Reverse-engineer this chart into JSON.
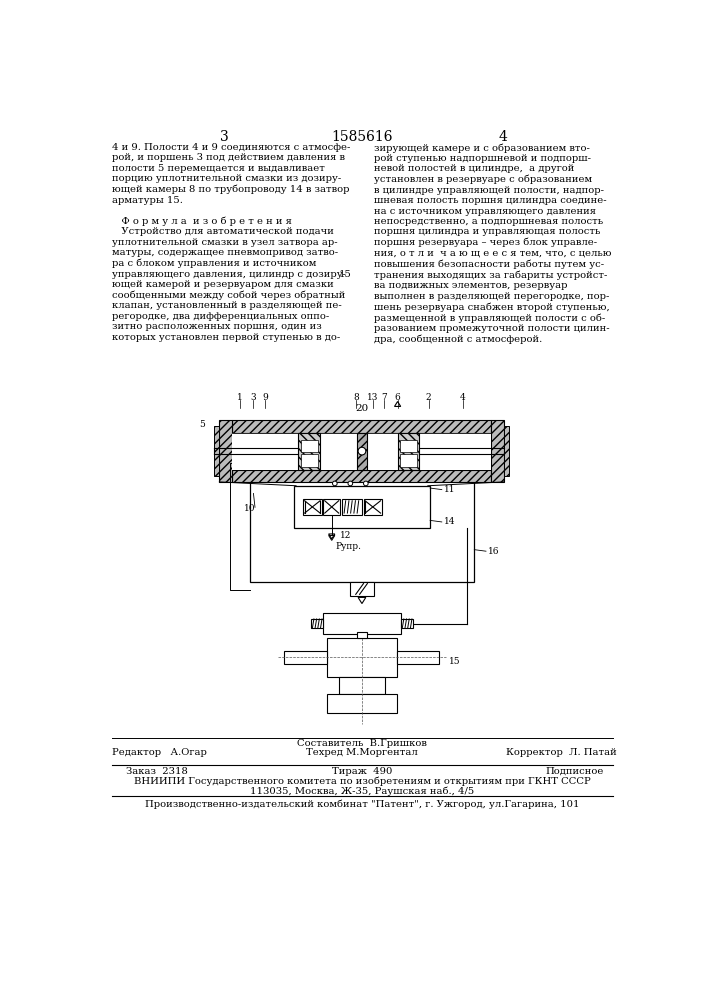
{
  "bg_color": "#ffffff",
  "page_num_left": "3",
  "page_num_center": "1585616",
  "page_num_right": "4",
  "col1": "4 и 9. Полости 4 и 9 соединяются с атмосфе-\nрой, и поршень 3 под действием давления в\nполости 5 перемещается и выдавливает\nпорцию уплотнительной смазки из дозиру-\nющей камеры 8 по трубопроводу 14 в затвор\nарматуры 15.\n\n   Ф о р м у л а  и з о б р е т е н и я\n   Устройство для автоматической подачи\nуплотнительной смазки в узел затвора ар-\nматуры, содержащее пневмопривод затво-\nра с блоком управления и источником\nуправляющего давления, цилиндр с дозиру-\nющей камерой и резервуаром для смазки\nсообщенными между собой через обратный\nклапан, установленный в разделяющей пе-\nрегородке, два дифференциальных оппо-\nзитно расположенных поршня, один из\nкоторых установлен первой ступенью в до-",
  "col2": "зирующей камере и с образованием вто-\nрой ступенью надпоршневой и подпорш-\nневой полостей в цилиндре,  а другой\nустановлен в резервуаре с образованием\nв цилиндре управляющей полости, надпор-\nшневая полость поршня цилиндра соедине-\nна с источником управляющего давления\nнепосредственно, а подпоршневая полость\nпоршня цилиндра и управляющая полость\nпоршня резервуара – через блок управле-\nния, о т л и  ч а ю щ е е с я тем, что, с целью\nповышения безопасности работы путем ус-\nтранения выходящих за габариты устройст-\nва подвижных элементов, резервуар\nвыполнен в разделяющей перегородке, пор-\nшень резервуара снабжен второй ступенью,\nразмещенной в управляющей полости с об-\nразованием промежуточной полости цилин-\nдра, сообщенной с атмосферой.",
  "num20": "20",
  "label5": "5",
  "label10": "10",
  "label11": "11",
  "label12": "12",
  "label14": "14",
  "label15": "15",
  "label16": "16",
  "label_rupr": "Рупр.",
  "top_labels": [
    "1",
    "3",
    "9",
    "8",
    "13",
    "7",
    "6",
    "2",
    "4"
  ],
  "footer_compositor": "Составитель  В.Гришков",
  "footer_editor": "Редактор   А.Огар",
  "footer_techred": "Техред М.Моргентал",
  "footer_corrector": "Корректор  Л. Патай",
  "footer_order": "Заказ  2318",
  "footer_tirazh": "Тираж  490",
  "footer_podp": "Подписное",
  "footer_vniiipi": "ВНИИПИ Государственного комитета по изобретениям и открытиям при ГКНТ СССР",
  "footer_addr": "113035, Москва, Ж-35, Раушская наб., 4/5",
  "footer_pub": "Производственно-издательский комбинат \"Патент\", г. Ужгород, ул.Гагарина, 101"
}
